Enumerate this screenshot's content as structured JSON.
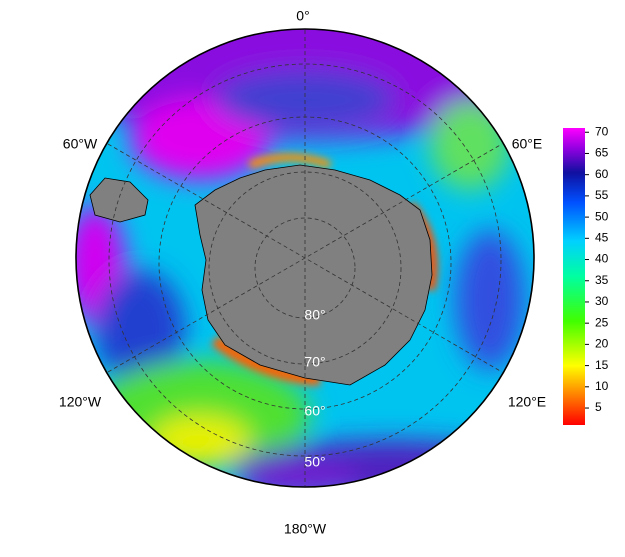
{
  "map": {
    "longitude_labels": [
      "0°",
      "60°E",
      "120°E",
      "180°W",
      "120°W",
      "60°W"
    ],
    "latitude_labels": [
      "80°",
      "70°",
      "60°",
      "50°"
    ]
  },
  "colorbar": {
    "range": [
      1,
      71
    ],
    "ticks": [
      5,
      10,
      15,
      20,
      25,
      30,
      35,
      40,
      45,
      50,
      55,
      60,
      65,
      70
    ]
  }
}
